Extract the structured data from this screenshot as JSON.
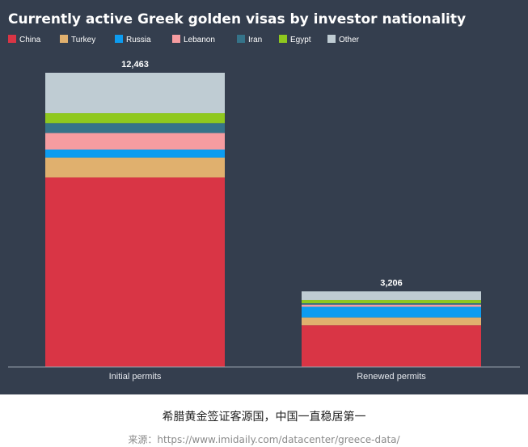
{
  "chart_data": {
    "type": "bar",
    "stacked": true,
    "title": "Currently active Greek golden visas by investor nationality",
    "categories": [
      "Initial permits",
      "Renewed permits"
    ],
    "totals": [
      "12,463",
      "3,206"
    ],
    "ylim": [
      0,
      12463
    ],
    "grid": false,
    "legend_position": "top-left",
    "series": [
      {
        "name": "China",
        "color": "#d93545",
        "values": [
          8030,
          1770
        ]
      },
      {
        "name": "Turkey",
        "color": "#e0b06e",
        "values": [
          840,
          330
        ]
      },
      {
        "name": "Russia",
        "color": "#0d9cf0",
        "values": [
          340,
          450
        ]
      },
      {
        "name": "Lebanon",
        "color": "#f69ca0",
        "values": [
          700,
          90
        ]
      },
      {
        "name": "Iran",
        "color": "#357389",
        "values": [
          420,
          60
        ]
      },
      {
        "name": "Egypt",
        "color": "#8fc81e",
        "values": [
          420,
          140
        ]
      },
      {
        "name": "Other",
        "color": "#bfccd3",
        "values": [
          1713,
          366
        ]
      }
    ]
  },
  "caption": "希腊黄金签证客源国，中国一直稳居第一",
  "source": "来源：https://www.imidaily.com/datacenter/greece-data/"
}
